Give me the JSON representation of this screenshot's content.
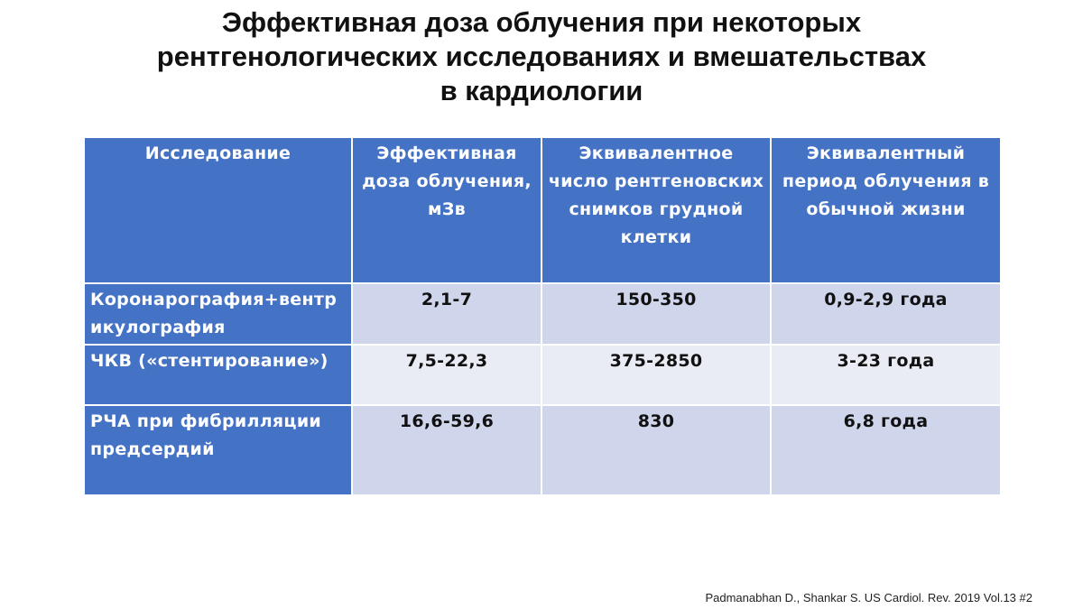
{
  "title": {
    "line1": "Эффективная доза облучения при некоторых",
    "line2": "рентгенологических исследованиях и вмешательствах",
    "line3": "в кардиологии"
  },
  "table": {
    "headers": [
      "Исследование",
      "Эффективная доза облучения, мЗв",
      "Эквивалентное число рентгеновских снимков грудной клетки",
      "Эквивалентный период облучения в обычной жизни"
    ],
    "rows": [
      {
        "procedure": "Коронарография+вентрикулография",
        "dose": "2,1-7",
        "xrays": "150-350",
        "period": "0,9-2,9 года"
      },
      {
        "procedure": "ЧКВ («стентирование»)",
        "dose": "7,5-22,3",
        "xrays": "375-2850",
        "period": "3-23 года"
      },
      {
        "procedure": "РЧА при фибрилляции предсердий",
        "dose": "16,6-59,6",
        "xrays": "830",
        "period": "6,8 года"
      }
    ]
  },
  "citation": "Padmanabhan D., Shankar S. US Cardiol. Rev. 2019 Vol.13 #2",
  "colors": {
    "header_bg": "#4472c4",
    "row_band_dark": "#cfd5ea",
    "row_band_light": "#e9ebf5"
  }
}
